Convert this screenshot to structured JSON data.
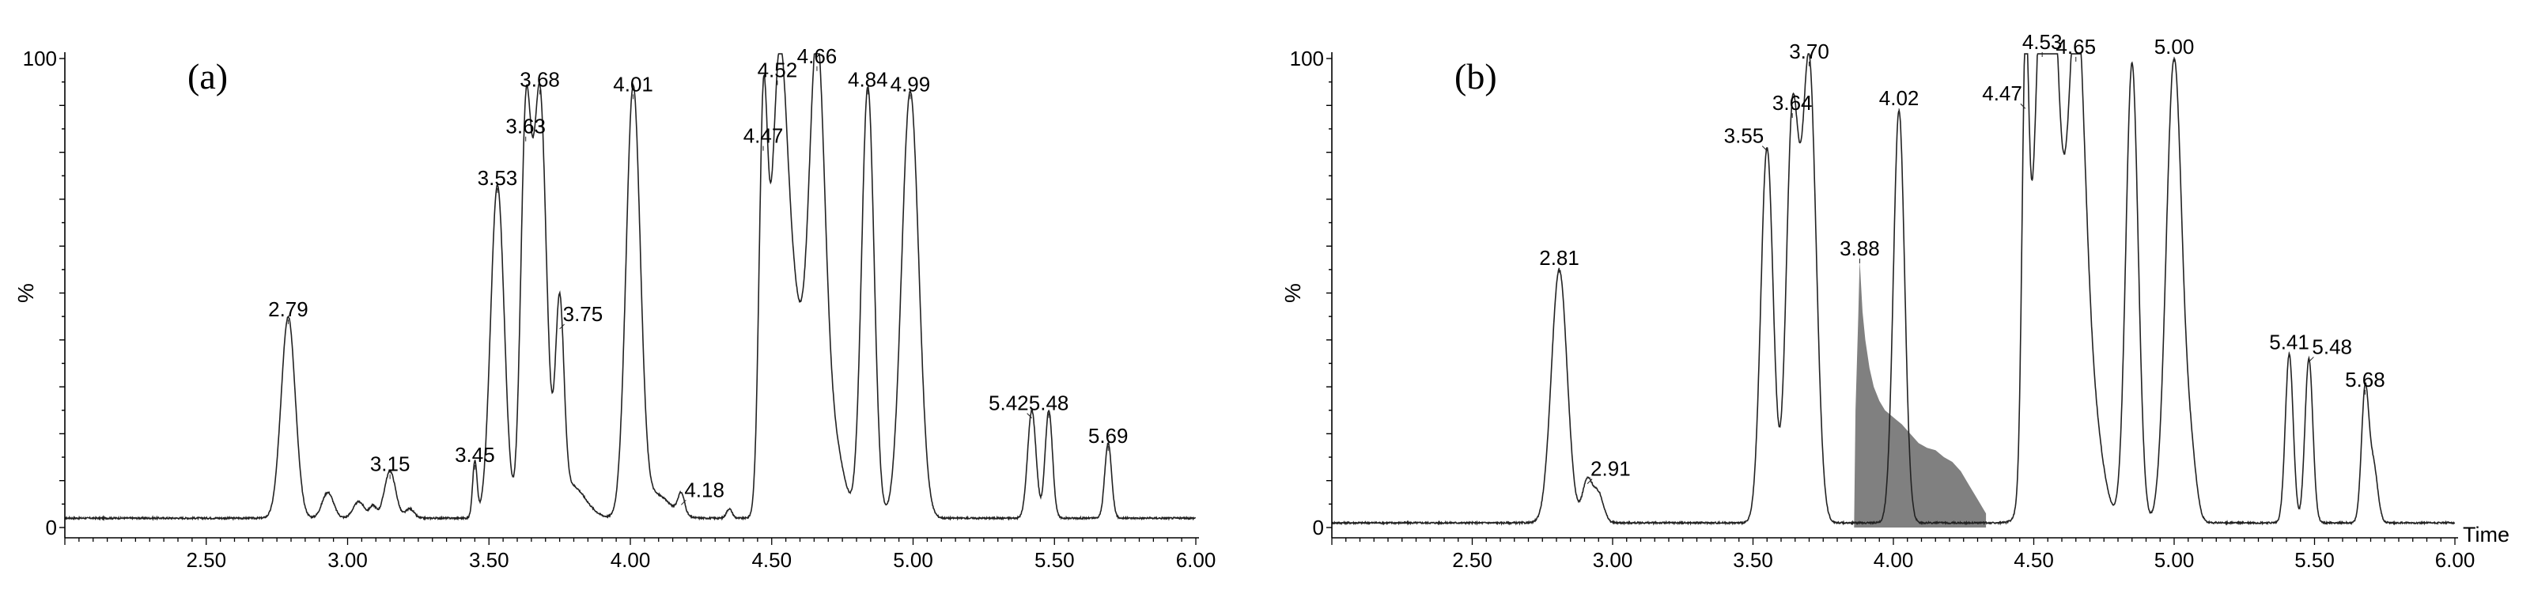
{
  "chart_data": [
    {
      "type": "line",
      "panel_label": "(a)",
      "x_range": [
        2.0,
        6.0
      ],
      "y_range": [
        0,
        100
      ],
      "ylabel": "%",
      "xlabel": "",
      "y_ticks": [
        {
          "value": 0,
          "label": "0"
        },
        {
          "value": 100,
          "label": "100"
        }
      ],
      "x_ticks": [
        {
          "value": 2.5,
          "label": "2.50"
        },
        {
          "value": 3.0,
          "label": "3.00"
        },
        {
          "value": 3.5,
          "label": "3.50"
        },
        {
          "value": 4.0,
          "label": "4.00"
        },
        {
          "value": 4.5,
          "label": "4.50"
        },
        {
          "value": 5.0,
          "label": "5.00"
        },
        {
          "value": 5.5,
          "label": "5.50"
        },
        {
          "value": 6.0,
          "label": "6.00"
        }
      ],
      "baseline": 2,
      "peaks": [
        {
          "x": 2.79,
          "y": 43,
          "w": 0.025
        },
        {
          "x": 2.93,
          "y": 5.5,
          "w": 0.02
        },
        {
          "x": 3.04,
          "y": 3.5,
          "w": 0.02
        },
        {
          "x": 3.09,
          "y": 2.5,
          "w": 0.012
        },
        {
          "x": 3.15,
          "y": 10,
          "w": 0.02
        },
        {
          "x": 3.22,
          "y": 2,
          "w": 0.015
        },
        {
          "x": 3.45,
          "y": 12,
          "w": 0.008
        },
        {
          "x": 3.53,
          "y": 71,
          "w": 0.024
        },
        {
          "x": 3.63,
          "y": 82,
          "w": 0.018
        },
        {
          "x": 3.68,
          "y": 90,
          "w": 0.023
        },
        {
          "x": 3.75,
          "y": 42,
          "w": 0.015
        },
        {
          "x": 3.79,
          "y": 7,
          "w": 0.05
        },
        {
          "x": 4.01,
          "y": 91,
          "w": 0.025
        },
        {
          "x": 4.09,
          "y": 5,
          "w": 0.05
        },
        {
          "x": 4.18,
          "y": 4.5,
          "w": 0.012
        },
        {
          "x": 4.35,
          "y": 2,
          "w": 0.01
        },
        {
          "x": 4.47,
          "y": 80,
          "w": 0.015
        },
        {
          "x": 4.525,
          "y": 88,
          "w": 0.028
        },
        {
          "x": 4.58,
          "y": 40,
          "w": 0.035
        },
        {
          "x": 4.66,
          "y": 97,
          "w": 0.028
        },
        {
          "x": 4.72,
          "y": 15,
          "w": 0.035
        },
        {
          "x": 4.84,
          "y": 92,
          "w": 0.022
        },
        {
          "x": 4.99,
          "y": 91,
          "w": 0.03
        },
        {
          "x": 5.42,
          "y": 23,
          "w": 0.015
        },
        {
          "x": 5.48,
          "y": 23,
          "w": 0.013
        },
        {
          "x": 5.69,
          "y": 16,
          "w": 0.012
        }
      ],
      "peak_labels": [
        {
          "x": 2.79,
          "y": 43,
          "label": "2.79",
          "anchor": "middle"
        },
        {
          "x": 3.15,
          "y": 10,
          "label": "3.15",
          "anchor": "middle"
        },
        {
          "x": 3.45,
          "y": 12,
          "label": "3.45",
          "anchor": "middle"
        },
        {
          "x": 3.53,
          "y": 71,
          "label": "3.53",
          "anchor": "middle"
        },
        {
          "x": 3.63,
          "y": 82,
          "label": "3.63",
          "anchor": "middle"
        },
        {
          "x": 3.68,
          "y": 92,
          "label": "3.68",
          "anchor": "middle"
        },
        {
          "x": 3.75,
          "y": 42,
          "label": "3.75",
          "anchor": "start"
        },
        {
          "x": 4.01,
          "y": 91,
          "label": "4.01",
          "anchor": "middle"
        },
        {
          "x": 4.18,
          "y": 4.5,
          "label": "4.18",
          "anchor": "start"
        },
        {
          "x": 4.47,
          "y": 80,
          "label": "4.47",
          "anchor": "middle"
        },
        {
          "x": 4.52,
          "y": 94,
          "label": "4.52",
          "anchor": "middle"
        },
        {
          "x": 4.66,
          "y": 97,
          "label": "4.66",
          "anchor": "middle"
        },
        {
          "x": 4.84,
          "y": 92,
          "label": "4.84",
          "anchor": "middle"
        },
        {
          "x": 4.99,
          "y": 91,
          "label": "4.99",
          "anchor": "middle"
        },
        {
          "x": 5.42,
          "y": 23,
          "label": "5.42",
          "anchor": "end"
        },
        {
          "x": 5.48,
          "y": 23,
          "label": "5.48",
          "anchor": "middle"
        },
        {
          "x": 5.69,
          "y": 16,
          "label": "5.69",
          "anchor": "middle"
        }
      ],
      "shaded_region": null
    },
    {
      "type": "line",
      "panel_label": "(b)",
      "x_range": [
        2.0,
        6.0
      ],
      "y_range": [
        0,
        100
      ],
      "ylabel": "%",
      "xlabel": "Time",
      "y_ticks": [
        {
          "value": 0,
          "label": "0"
        },
        {
          "value": 100,
          "label": "100"
        }
      ],
      "x_ticks": [
        {
          "value": 2.5,
          "label": "2.50"
        },
        {
          "value": 3.0,
          "label": "3.00"
        },
        {
          "value": 3.5,
          "label": "3.50"
        },
        {
          "value": 4.0,
          "label": "4.00"
        },
        {
          "value": 4.5,
          "label": "4.50"
        },
        {
          "value": 5.0,
          "label": "5.00"
        },
        {
          "value": 5.5,
          "label": "5.50"
        },
        {
          "value": 6.0,
          "label": "6.00"
        }
      ],
      "baseline": 1,
      "peaks": [
        {
          "x": 2.81,
          "y": 54,
          "w": 0.028
        },
        {
          "x": 2.91,
          "y": 9,
          "w": 0.018
        },
        {
          "x": 2.95,
          "y": 6,
          "w": 0.018
        },
        {
          "x": 3.55,
          "y": 80,
          "w": 0.022
        },
        {
          "x": 3.64,
          "y": 85,
          "w": 0.022
        },
        {
          "x": 3.7,
          "y": 98,
          "w": 0.025
        },
        {
          "x": 4.02,
          "y": 88,
          "w": 0.02
        },
        {
          "x": 4.47,
          "y": 83,
          "w": 0.012
        },
        {
          "x": 4.53,
          "y": 100,
          "w": 0.035
        },
        {
          "x": 4.57,
          "y": 70,
          "w": 0.03
        },
        {
          "x": 4.65,
          "y": 99,
          "w": 0.03
        },
        {
          "x": 4.7,
          "y": 25,
          "w": 0.04
        },
        {
          "x": 4.85,
          "y": 98,
          "w": 0.022
        },
        {
          "x": 5.0,
          "y": 99,
          "w": 0.028
        },
        {
          "x": 5.06,
          "y": 12,
          "w": 0.02
        },
        {
          "x": 5.41,
          "y": 36,
          "w": 0.014
        },
        {
          "x": 5.48,
          "y": 35,
          "w": 0.014
        },
        {
          "x": 5.68,
          "y": 28,
          "w": 0.013
        },
        {
          "x": 5.71,
          "y": 12,
          "w": 0.015
        }
      ],
      "peak_labels": [
        {
          "x": 2.81,
          "y": 54,
          "label": "2.81",
          "anchor": "middle"
        },
        {
          "x": 2.91,
          "y": 9,
          "label": "2.91",
          "anchor": "start"
        },
        {
          "x": 3.55,
          "y": 80,
          "label": "3.55",
          "anchor": "end"
        },
        {
          "x": 3.64,
          "y": 87,
          "label": "3.64",
          "anchor": "middle"
        },
        {
          "x": 3.7,
          "y": 98,
          "label": "3.70",
          "anchor": "middle"
        },
        {
          "x": 3.88,
          "y": 56,
          "label": "3.88",
          "anchor": "middle"
        },
        {
          "x": 4.02,
          "y": 88,
          "label": "4.02",
          "anchor": "middle"
        },
        {
          "x": 4.47,
          "y": 89,
          "label": "4.47",
          "anchor": "end"
        },
        {
          "x": 4.53,
          "y": 100,
          "label": "4.53",
          "anchor": "middle"
        },
        {
          "x": 4.65,
          "y": 99,
          "label": "4.65",
          "anchor": "middle"
        },
        {
          "x": 5.0,
          "y": 99,
          "label": "5.00",
          "anchor": "middle"
        },
        {
          "x": 5.41,
          "y": 36,
          "label": "5.41",
          "anchor": "middle"
        },
        {
          "x": 5.48,
          "y": 35,
          "label": "5.48",
          "anchor": "start"
        },
        {
          "x": 5.68,
          "y": 28,
          "label": "5.68",
          "anchor": "middle"
        }
      ],
      "shaded_region": {
        "color": "#808080",
        "points": [
          [
            3.86,
            0
          ],
          [
            3.865,
            25
          ],
          [
            3.875,
            45
          ],
          [
            3.88,
            57
          ],
          [
            3.89,
            46
          ],
          [
            3.9,
            40
          ],
          [
            3.915,
            34
          ],
          [
            3.93,
            30
          ],
          [
            3.95,
            27
          ],
          [
            3.97,
            25
          ],
          [
            3.99,
            24
          ],
          [
            4.01,
            23
          ],
          [
            4.03,
            22
          ],
          [
            4.06,
            20
          ],
          [
            4.09,
            18
          ],
          [
            4.12,
            17
          ],
          [
            4.15,
            16.5
          ],
          [
            4.18,
            15
          ],
          [
            4.21,
            14
          ],
          [
            4.24,
            12
          ],
          [
            4.27,
            9
          ],
          [
            4.3,
            6
          ],
          [
            4.33,
            3
          ],
          [
            4.33,
            0
          ]
        ]
      }
    }
  ]
}
